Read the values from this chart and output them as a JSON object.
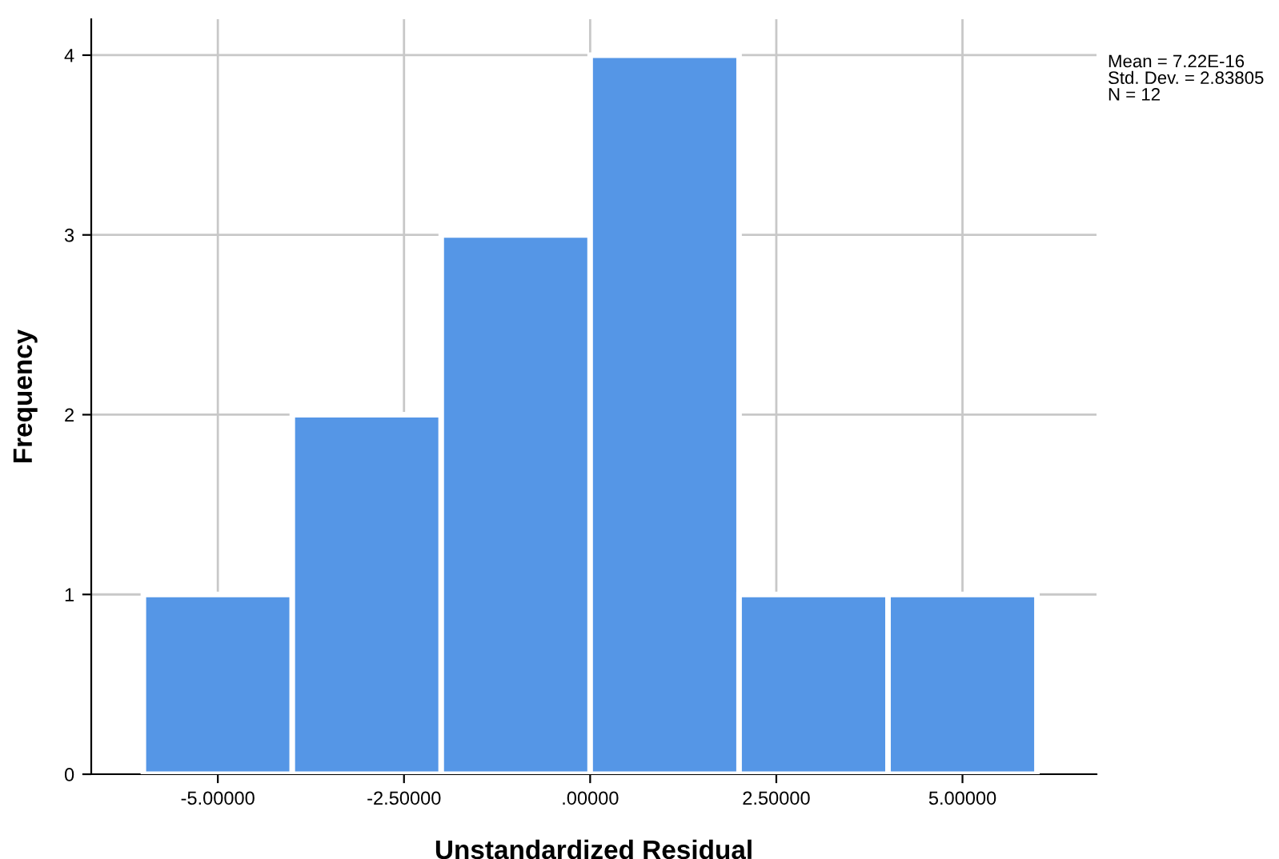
{
  "chart_data": {
    "type": "histogram",
    "xlabel": "Unstandardized Residual",
    "ylabel": "Frequency",
    "bins": [
      -6,
      -4,
      -2,
      0,
      2,
      4,
      6
    ],
    "values": [
      1,
      2,
      3,
      4,
      1,
      1
    ],
    "color": "#5596e6",
    "xlim": [
      -6.7,
      6.8
    ],
    "ylim": [
      0,
      4.2
    ],
    "xticks": [
      {
        "value": -5,
        "label": "-5.00000"
      },
      {
        "value": -2.5,
        "label": "-2.50000"
      },
      {
        "value": 0,
        "label": ".00000"
      },
      {
        "value": 2.5,
        "label": "2.50000"
      },
      {
        "value": 5,
        "label": "5.00000"
      }
    ],
    "yticks": [
      0,
      1,
      2,
      3,
      4
    ],
    "grid": true,
    "annotations": [
      "Mean = 7.22E-16\nStd. Dev. = 2.83805\nN = 12"
    ]
  }
}
